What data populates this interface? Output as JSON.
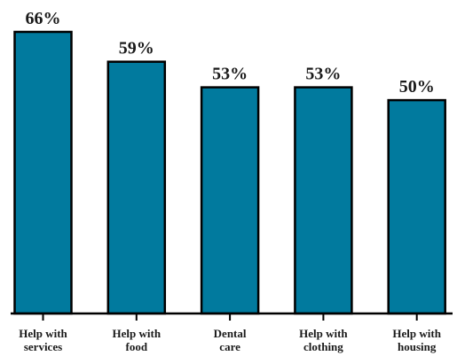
{
  "chart_data": {
    "type": "bar",
    "categories": [
      [
        "Help with",
        "services"
      ],
      [
        "Help with",
        "food"
      ],
      [
        "Dental",
        "care"
      ],
      [
        "Help with",
        "clothing"
      ],
      [
        "Help with",
        "housing"
      ]
    ],
    "values": [
      66,
      59,
      53,
      53,
      50
    ],
    "value_labels": [
      "66%",
      "59%",
      "53%",
      "53%",
      "50%"
    ],
    "ylim": [
      0,
      66
    ],
    "title": "",
    "xlabel": "",
    "ylabel": "",
    "grid": false,
    "colors": {
      "bar_fill": "#017a9e",
      "bar_stroke": "#000000",
      "text": "#1a1a1a"
    }
  }
}
